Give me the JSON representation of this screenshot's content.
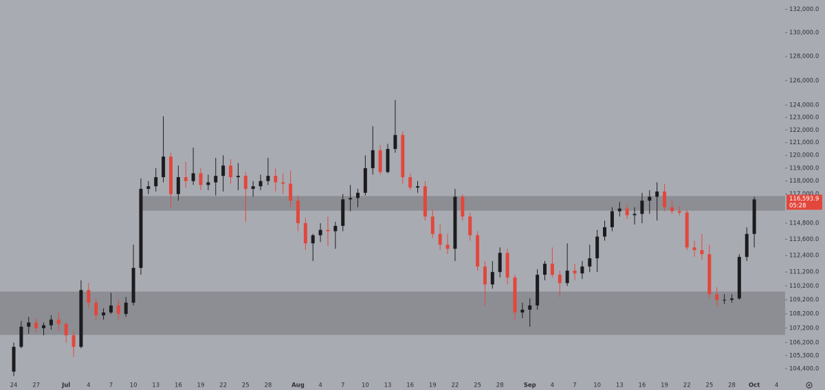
{
  "chart_data": {
    "type": "candlestick",
    "log_scale": true,
    "up_color": "#1c1c1f",
    "down_color": "#e2473c",
    "zone_color": "#87888e",
    "background": "#a9abb3",
    "categories": [
      "24",
      null,
      null,
      "27",
      null,
      null,
      null,
      "Jul",
      null,
      null,
      "4",
      null,
      null,
      "7",
      null,
      null,
      "10",
      null,
      null,
      "13",
      null,
      null,
      "16",
      null,
      null,
      "19",
      null,
      null,
      "22",
      null,
      null,
      "25",
      null,
      null,
      "28",
      null,
      null,
      null,
      "Aug",
      null,
      null,
      "4",
      null,
      null,
      "7",
      null,
      null,
      "10",
      null,
      null,
      "13",
      null,
      null,
      "16",
      null,
      null,
      "19",
      null,
      null,
      "22",
      null,
      null,
      "25",
      null,
      null,
      "28",
      null,
      null,
      null,
      "Sep",
      null,
      null,
      "4",
      null,
      null,
      "7",
      null,
      null,
      "10",
      null,
      null,
      "13",
      null,
      null,
      "16",
      null,
      null,
      "19",
      null,
      null,
      "22",
      null,
      null,
      "25",
      null,
      null,
      "28",
      null,
      null,
      "Oct",
      null,
      null,
      "4"
    ],
    "open": [
      104200,
      105900,
      107300,
      107600,
      107200,
      107400,
      107800,
      107500,
      106700,
      105900,
      109900,
      109000,
      108100,
      108300,
      108800,
      108200,
      109000,
      111500,
      117400,
      117600,
      118300,
      119900,
      117000,
      118300,
      118000,
      118600,
      117700,
      117900,
      118400,
      119200,
      118300,
      118400,
      117400,
      117600,
      118000,
      118400,
      117900,
      117800,
      116500,
      114800,
      113300,
      113900,
      114300,
      114200,
      114600,
      116600,
      116700,
      117100,
      119000,
      120400,
      118700,
      120500,
      121600,
      118300,
      117500,
      117600,
      115300,
      114000,
      113200,
      112900,
      116800,
      115300,
      113900,
      111600,
      110300,
      111200,
      112600,
      110800,
      108300,
      108500,
      108800,
      111000,
      111800,
      111000,
      110400,
      111300,
      111100,
      111600,
      112200,
      113800,
      114500,
      115700,
      115900,
      115400,
      115500,
      116500,
      116800,
      117200,
      116000,
      115700,
      115600,
      113000,
      112800,
      112500,
      109600,
      109200,
      109200,
      109300,
      112300,
      114000,
      null,
      null,
      null
    ],
    "high": [
      106200,
      107700,
      108000,
      107900,
      107600,
      108100,
      108300,
      107600,
      107000,
      110600,
      110400,
      109300,
      108600,
      109700,
      109200,
      109400,
      113200,
      118200,
      118000,
      119000,
      123100,
      120200,
      119200,
      119500,
      120600,
      119000,
      118500,
      119800,
      120000,
      119700,
      119400,
      118700,
      118000,
      118500,
      119800,
      119000,
      118600,
      118800,
      116900,
      115200,
      114000,
      114800,
      115300,
      114900,
      117000,
      117700,
      117400,
      120000,
      122300,
      120800,
      120900,
      124400,
      121900,
      118600,
      118000,
      118000,
      115800,
      114700,
      114000,
      117400,
      117000,
      115600,
      114200,
      112000,
      112000,
      113000,
      112900,
      111000,
      109000,
      109300,
      111400,
      112000,
      113000,
      111300,
      113300,
      111800,
      112000,
      113200,
      114300,
      115000,
      116000,
      116400,
      116200,
      116000,
      117100,
      117300,
      117900,
      117800,
      116500,
      116100,
      115800,
      113500,
      114000,
      113200,
      110100,
      109600,
      109600,
      112500,
      114500,
      116800,
      null,
      null,
      null
    ],
    "low": [
      103900,
      105800,
      106800,
      106900,
      106700,
      107100,
      107000,
      106200,
      105200,
      105800,
      108600,
      107700,
      107800,
      108200,
      107800,
      108000,
      108800,
      111000,
      117000,
      117200,
      117900,
      116000,
      116500,
      117500,
      117700,
      117300,
      117300,
      116900,
      117200,
      117800,
      117300,
      114900,
      116800,
      117300,
      117700,
      117200,
      117000,
      116000,
      114200,
      112800,
      112000,
      113400,
      113100,
      112900,
      114200,
      115700,
      116000,
      116900,
      118500,
      118500,
      118600,
      120200,
      117800,
      117300,
      117100,
      115000,
      113700,
      112800,
      112500,
      112000,
      115000,
      113500,
      111300,
      108800,
      110000,
      110800,
      110300,
      107800,
      107900,
      107300,
      108500,
      110600,
      110800,
      109400,
      110200,
      110600,
      110700,
      111200,
      111200,
      113500,
      114200,
      115300,
      115100,
      114700,
      114800,
      115500,
      115000,
      115700,
      115500,
      115400,
      112800,
      112300,
      112100,
      109300,
      108700,
      108900,
      109000,
      109200,
      112000,
      113000,
      null,
      null,
      null
    ],
    "close": [
      105900,
      107300,
      107600,
      107200,
      107400,
      107800,
      107500,
      106700,
      105900,
      109900,
      109000,
      108100,
      108300,
      108800,
      108200,
      109000,
      111500,
      117400,
      117600,
      118300,
      119900,
      117000,
      118300,
      118000,
      118600,
      117700,
      117900,
      118400,
      119200,
      118300,
      118400,
      117400,
      117600,
      118000,
      118400,
      117900,
      117800,
      116500,
      114800,
      113300,
      113900,
      114300,
      114200,
      114600,
      116600,
      116700,
      117100,
      119000,
      120400,
      118700,
      120500,
      121600,
      118300,
      117500,
      117600,
      115300,
      114000,
      113200,
      112900,
      116800,
      115300,
      113900,
      111600,
      110300,
      111200,
      112600,
      110800,
      108300,
      108500,
      108800,
      111000,
      111800,
      111000,
      110400,
      111300,
      111100,
      111600,
      112200,
      113800,
      114500,
      115700,
      115900,
      115400,
      115500,
      116500,
      116800,
      117200,
      116000,
      115700,
      115600,
      113000,
      112800,
      112500,
      109600,
      109200,
      109200,
      109300,
      112300,
      114000,
      116593.9,
      null,
      null,
      null
    ],
    "zones": [
      {
        "low": 115740,
        "high": 116850
      },
      {
        "low": 106730,
        "high": 109790
      }
    ],
    "ylim": [
      103700,
      132800
    ],
    "yticks": [
      {
        "value": 132000,
        "label": "132,000.0"
      },
      {
        "value": 130000,
        "label": "130,000.0"
      },
      {
        "value": 128000,
        "label": "128,000.0"
      },
      {
        "value": 126000,
        "label": "126,000.0"
      },
      {
        "value": 124000,
        "label": "124,000.0"
      },
      {
        "value": 123000,
        "label": "123,000.0"
      },
      {
        "value": 122000,
        "label": "122,000.0"
      },
      {
        "value": 121000,
        "label": "121,000.0"
      },
      {
        "value": 120000,
        "label": "120,000.0"
      },
      {
        "value": 119000,
        "label": "119,000.0"
      },
      {
        "value": 118000,
        "label": "118,000.0"
      },
      {
        "value": 117000,
        "label": "117,000.0"
      },
      {
        "value": 114800,
        "label": "114,800.0"
      },
      {
        "value": 113600,
        "label": "113,600.0"
      },
      {
        "value": 112400,
        "label": "112,400.0"
      },
      {
        "value": 111200,
        "label": "111,200.0"
      },
      {
        "value": 110200,
        "label": "110,200.0"
      },
      {
        "value": 109200,
        "label": "109,200.0"
      },
      {
        "value": 108200,
        "label": "108,200.0"
      },
      {
        "value": 107200,
        "label": "107,200.0"
      },
      {
        "value": 106200,
        "label": "106,200.0"
      },
      {
        "value": 105300,
        "label": "105,300.0"
      },
      {
        "value": 104400,
        "label": "104,400.0"
      }
    ],
    "last_price": {
      "value": 116593.9,
      "label": "116,593.9"
    },
    "countdown": "05:28"
  }
}
